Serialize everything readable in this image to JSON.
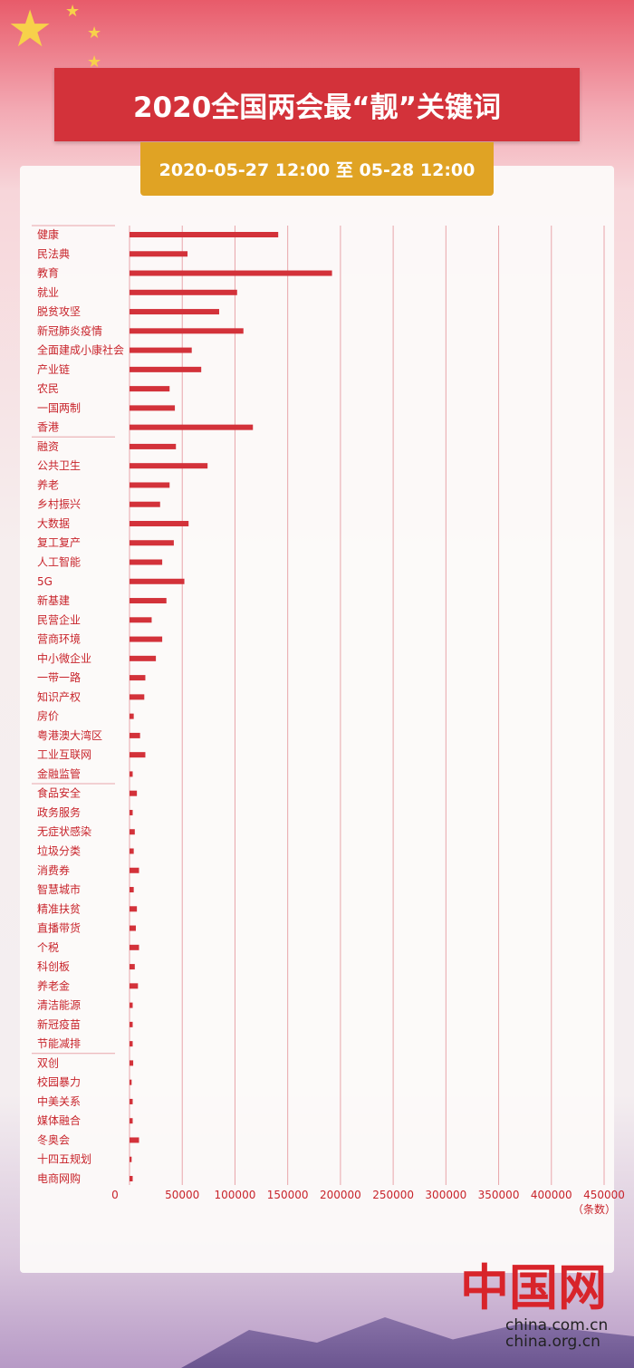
{
  "header": {
    "title": "2020全国两会最“靓”关键词",
    "date_range": "2020-05-27 12:00 至 05-28 12:00"
  },
  "logo": {
    "mark": "中国网",
    "url1": "china.com.cn",
    "url2": "china.org.cn"
  },
  "colors": {
    "bar": "#d3323a",
    "title_bg": "#d3323a",
    "date_bg": "#e0a324",
    "grid": "#e8a5aa",
    "text": "#c8242b"
  },
  "chart_data": {
    "type": "bar",
    "orientation": "horizontal",
    "title": "",
    "xlabel": "",
    "unit_label": "（条数）",
    "xlim": [
      0,
      450000
    ],
    "xticks": [
      "0",
      "50000",
      "100000",
      "150000",
      "200000",
      "250000",
      "300000",
      "350000",
      "400000",
      "450000"
    ],
    "grid": "vertical",
    "group_breaks_after": [
      "香港",
      "金融监管",
      "节能减排"
    ],
    "categories": [
      "健康",
      "民法典",
      "教育",
      "就业",
      "脱贫攻坚",
      "新冠肺炎疫情",
      "全面建成小康社会",
      "产业链",
      "农民",
      "一国两制",
      "香港",
      "融资",
      "公共卫生",
      "养老",
      "乡村振兴",
      "大数据",
      "复工复产",
      "人工智能",
      "5G",
      "新基建",
      "民营企业",
      "营商环境",
      "中小微企业",
      "一带一路",
      "知识产权",
      "房价",
      "粤港澳大湾区",
      "工业互联网",
      "金融监管",
      "食品安全",
      "政务服务",
      "无症状感染",
      "垃圾分类",
      "消费券",
      "智慧城市",
      "精准扶贫",
      "直播带货",
      "个税",
      "科创板",
      "养老金",
      "清洁能源",
      "新冠疫苗",
      "节能减排",
      "双创",
      "校园暴力",
      "中美关系",
      "媒体融合",
      "冬奥会",
      "十四五规划",
      "电商网购"
    ],
    "values": [
      141000,
      55000,
      192000,
      102000,
      85000,
      108000,
      59000,
      68000,
      38000,
      43000,
      117000,
      44000,
      74000,
      38000,
      29000,
      56000,
      42000,
      31000,
      52000,
      35000,
      21000,
      31000,
      25000,
      15000,
      14000,
      4000,
      10000,
      15000,
      3000,
      7000,
      3000,
      5000,
      4000,
      9000,
      4000,
      7000,
      6000,
      9000,
      5000,
      8000,
      3000,
      3000,
      3000,
      3500,
      2000,
      3000,
      3000,
      9000,
      2000,
      3000
    ]
  }
}
